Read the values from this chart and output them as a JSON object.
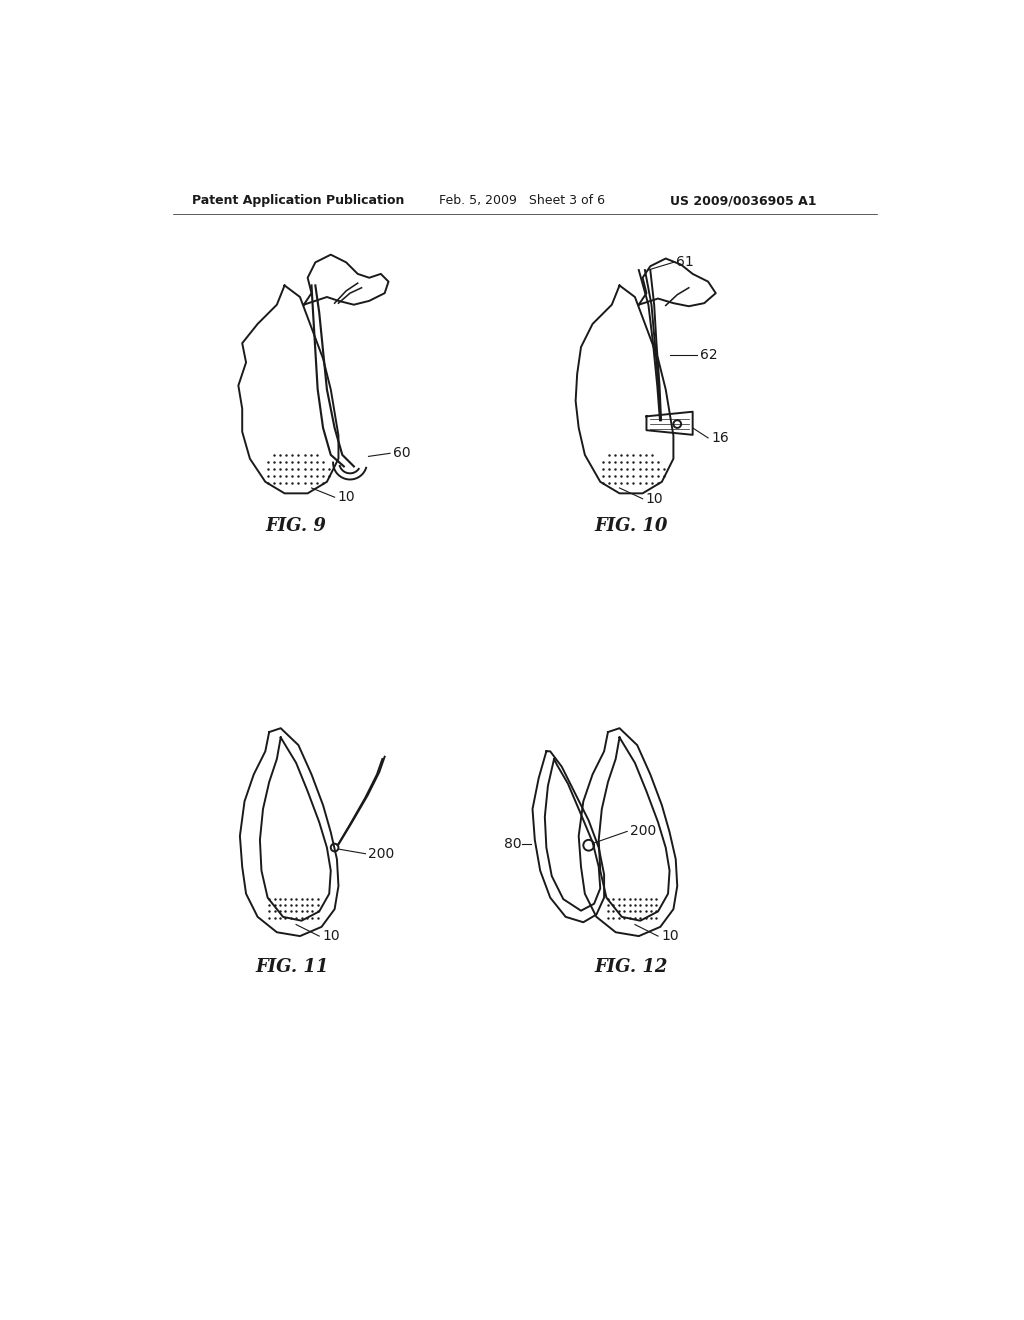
{
  "background_color": "#ffffff",
  "header_left": "Patent Application Publication",
  "header_center": "Feb. 5, 2009   Sheet 3 of 6",
  "header_right": "US 2009/0036905 A1",
  "fig9_label": "FIG. 9",
  "fig10_label": "FIG. 10",
  "fig11_label": "FIG. 11",
  "fig12_label": "FIG. 12",
  "ref_60": "60",
  "ref_10_fig9": "10",
  "ref_61": "61",
  "ref_62": "62",
  "ref_16": "16",
  "ref_10_fig10": "10",
  "ref_200_fig11": "200",
  "ref_10_fig11": "10",
  "ref_80": "80",
  "ref_200_fig12": "200",
  "ref_10_fig12": "10",
  "line_color": "#1a1a1a",
  "line_width": 1.4,
  "text_color": "#1a1a1a",
  "header_fontsize": 9,
  "label_fontsize": 13,
  "ref_fontsize": 10
}
